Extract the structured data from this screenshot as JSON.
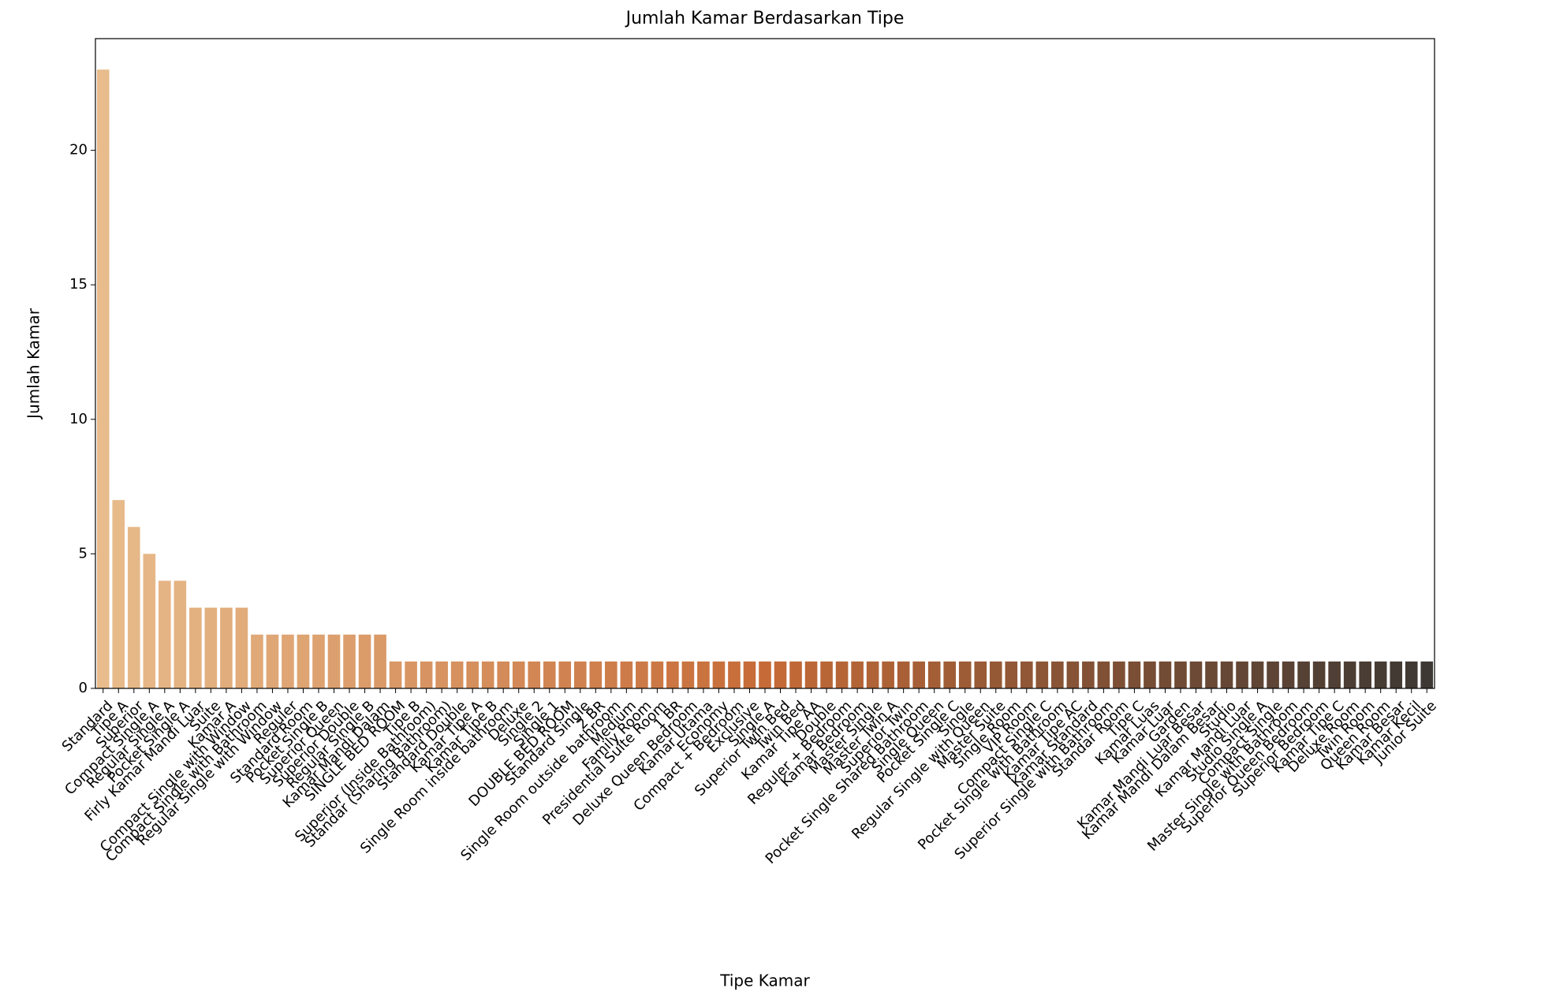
{
  "chart_data": {
    "type": "bar",
    "title": "Jumlah Kamar Berdasarkan Tipe",
    "xlabel": "Tipe Kamar",
    "ylabel": "Jumlah Kamar",
    "categories": [
      "Standard",
      "Tipe A",
      "Superior",
      "Compact Single A",
      "Regular Single A",
      "Pocket Single A",
      "Firly Kamar Mandi Luar",
      "Suite",
      "Kamar A",
      "Compact Single with Window",
      "Compact Single with Bathroom",
      "Regular Single with Window",
      "Reguler",
      "Standard Room",
      "Pocket Single B",
      "Superior Queen",
      "Superior Double",
      "Regular Single B",
      "Kamar Mandi Dalam",
      "SINGLE BED ROOM",
      "Tipe B",
      "Superior (Inside Bathroom)",
      "Standar (Sharing Bathroom)",
      "Standard Double",
      "Kamar Tipe A",
      "Kamar Tipe B",
      "Single Room inside bathroom",
      "Deluxe",
      "Single 2",
      "Single 1",
      "DOUBLE BED ROOM",
      "Standard Single",
      "2 BR",
      "Single Room outside bathroom",
      "Medium",
      "Family Room",
      "Presidential Suite Room",
      "1 BR",
      "Deluxe Queen Bedroom",
      "Kamar Utama",
      "Economy",
      "Compact + Bedroom",
      "Exclusive",
      "Single A",
      "Superior Twin Bed",
      "Twin Bed",
      "Kamar Tipe AA",
      "Double",
      "Reguler + Bedroom",
      "Kamar Bedroom",
      "Master Single",
      "Master Twin A",
      "Superior Twin",
      "Pocket Single Shared Bathroom",
      "Single Queen",
      "Pocket Single C",
      "Single",
      "Regular Single with Queen",
      "Master Suite",
      "Single Room",
      "VIP Room",
      "Compact Single C",
      "Pocket Single with Bathroom",
      "Kamar Tipe AC",
      "Kamar Standard",
      "Superior Single with Bathroom",
      "Standar Room",
      "Tipe C",
      "Kamar Luas",
      "Kamar Luar",
      "Garden",
      "Kamar Mandi Luar Besar",
      "Kamar Mandi Dalam Besar",
      "Studio",
      "Kamar Mandi Luar",
      "Studio Single A",
      "Compact Single",
      "Master Single with Bathroom",
      "Superior Queen Bedroom",
      "Superior Bedroom",
      "Kamar Tipe C",
      "Deluxe Room",
      "Twin Room",
      "Queen Room",
      "Kamar Besar",
      "Kamar Kecil",
      "Junior Suite"
    ],
    "values": [
      23,
      7,
      6,
      5,
      4,
      4,
      3,
      3,
      3,
      3,
      2,
      2,
      2,
      2,
      2,
      2,
      2,
      2,
      2,
      1,
      1,
      1,
      1,
      1,
      1,
      1,
      1,
      1,
      1,
      1,
      1,
      1,
      1,
      1,
      1,
      1,
      1,
      1,
      1,
      1,
      1,
      1,
      1,
      1,
      1,
      1,
      1,
      1,
      1,
      1,
      1,
      1,
      1,
      1,
      1,
      1,
      1,
      1,
      1,
      1,
      1,
      1,
      1,
      1,
      1,
      1,
      1,
      1,
      1,
      1,
      1,
      1,
      1,
      1,
      1,
      1,
      1,
      1,
      1,
      1,
      1,
      1,
      1,
      1,
      1,
      1,
      1
    ],
    "palette": [
      "#e8bc8c",
      "#c66b37",
      "#3d3834"
    ],
    "ylim": [
      0,
      24.15
    ],
    "yticks": [
      0,
      5,
      10,
      15,
      20
    ]
  }
}
